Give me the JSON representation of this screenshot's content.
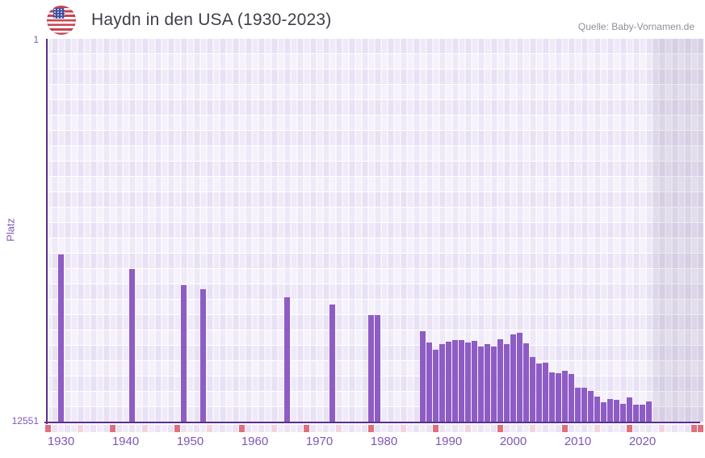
{
  "header": {
    "title": "Haydn in den USA (1930-2023)",
    "source": "Quelle: Baby-Vornamen.de"
  },
  "icons": {
    "flag": "us-flag-icon"
  },
  "chart_data": {
    "type": "bar",
    "title": "Haydn in den USA (1930-2023)",
    "source": "Quelle: Baby-Vornamen.de",
    "xlabel": "",
    "ylabel": "Platz",
    "y_axis": {
      "top_label": "1",
      "bottom_label": "12551",
      "min": 1,
      "max": 12551,
      "inverted": true,
      "note": "rank 1 at top"
    },
    "x_ticks": [
      1930,
      1940,
      1950,
      1960,
      1970,
      1980,
      1990,
      2000,
      2010,
      2020
    ],
    "x_range": [
      1927.6,
      2028.5
    ],
    "grid": true,
    "legend": "none",
    "bar_color": "#8e5cc5",
    "no_data_region_start": 2022,
    "points": [
      {
        "year": 1930,
        "rank": 7050
      },
      {
        "year": 1941,
        "rank": 7530
      },
      {
        "year": 1949,
        "rank": 8070
      },
      {
        "year": 1952,
        "rank": 8200
      },
      {
        "year": 1965,
        "rank": 8460
      },
      {
        "year": 1972,
        "rank": 8690
      },
      {
        "year": 1978,
        "rank": 9040
      },
      {
        "year": 1979,
        "rank": 9050
      },
      {
        "year": 1986,
        "rank": 9570
      },
      {
        "year": 1987,
        "rank": 9940
      },
      {
        "year": 1988,
        "rank": 10160
      },
      {
        "year": 1989,
        "rank": 9990
      },
      {
        "year": 1990,
        "rank": 9910
      },
      {
        "year": 1991,
        "rank": 9860
      },
      {
        "year": 1992,
        "rank": 9860
      },
      {
        "year": 1993,
        "rank": 9940
      },
      {
        "year": 1994,
        "rank": 9870
      },
      {
        "year": 1995,
        "rank": 10070
      },
      {
        "year": 1996,
        "rank": 9990
      },
      {
        "year": 1997,
        "rank": 10080
      },
      {
        "year": 1998,
        "rank": 9840
      },
      {
        "year": 1999,
        "rank": 10000
      },
      {
        "year": 2000,
        "rank": 9670
      },
      {
        "year": 2001,
        "rank": 9620
      },
      {
        "year": 2002,
        "rank": 9960
      },
      {
        "year": 2003,
        "rank": 10410
      },
      {
        "year": 2004,
        "rank": 10620
      },
      {
        "year": 2005,
        "rank": 10590
      },
      {
        "year": 2006,
        "rank": 10900
      },
      {
        "year": 2007,
        "rank": 10950
      },
      {
        "year": 2008,
        "rank": 10870
      },
      {
        "year": 2009,
        "rank": 10970
      },
      {
        "year": 2010,
        "rank": 11410
      },
      {
        "year": 2011,
        "rank": 11410
      },
      {
        "year": 2012,
        "rank": 11530
      },
      {
        "year": 2013,
        "rank": 11700
      },
      {
        "year": 2014,
        "rank": 11890
      },
      {
        "year": 2015,
        "rank": 11780
      },
      {
        "year": 2016,
        "rank": 11800
      },
      {
        "year": 2017,
        "rank": 11940
      },
      {
        "year": 2018,
        "rank": 11730
      },
      {
        "year": 2019,
        "rank": 11970
      },
      {
        "year": 2020,
        "rank": 11970
      },
      {
        "year": 2021,
        "rank": 11860
      }
    ],
    "axis_strip": {
      "salmon_color": "#e0707d",
      "pink_color": "#f2d4de",
      "base_colors": [
        "#f1ebf9",
        "#eae3f4"
      ],
      "salmon_years": [
        1928,
        1938,
        1948,
        1958,
        1968,
        1978,
        1988,
        1998,
        2008,
        2018,
        2028,
        2029
      ],
      "pink_years": [
        1933,
        1943,
        1953,
        1963,
        1973,
        1983,
        1993,
        2003,
        2013,
        2023
      ]
    }
  }
}
